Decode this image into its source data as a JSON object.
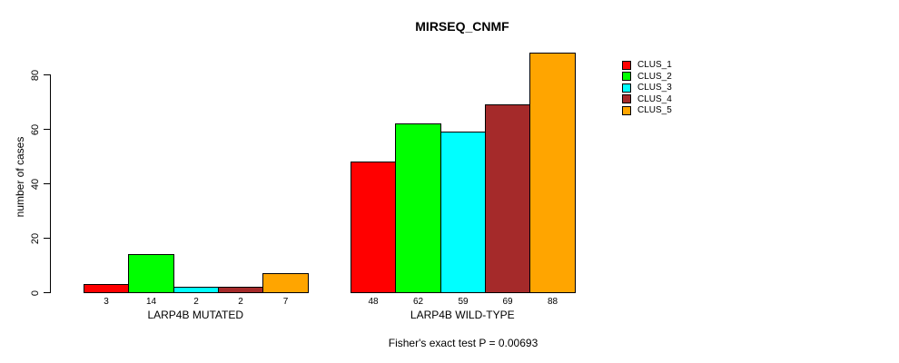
{
  "chart_data": {
    "type": "bar",
    "title": "MIRSEQ_CNMF",
    "ylabel": "number of cases",
    "xlabel": "",
    "ylim": [
      0,
      80
    ],
    "yticks": [
      0,
      20,
      40,
      60,
      80
    ],
    "grid": false,
    "legend_position": "right",
    "bar_value_labels": true,
    "categories": [
      "LARP4B MUTATED",
      "LARP4B WILD-TYPE"
    ],
    "series": [
      {
        "name": "CLUS_1",
        "color": "#FF0000",
        "values": [
          3,
          48
        ]
      },
      {
        "name": "CLUS_2",
        "color": "#00FF00",
        "values": [
          14,
          62
        ]
      },
      {
        "name": "CLUS_3",
        "color": "#00FFFF",
        "values": [
          2,
          59
        ]
      },
      {
        "name": "CLUS_4",
        "color": "#A52A2A",
        "values": [
          2,
          69
        ]
      },
      {
        "name": "CLUS_5",
        "color": "#FFA500",
        "values": [
          7,
          88
        ]
      }
    ],
    "footnote": "Fisher's exact test P = 0.00693",
    "colors": {
      "background": "#FFFFFF",
      "axis": "#000000",
      "bar_border": "#000000",
      "text": "#000000"
    }
  }
}
